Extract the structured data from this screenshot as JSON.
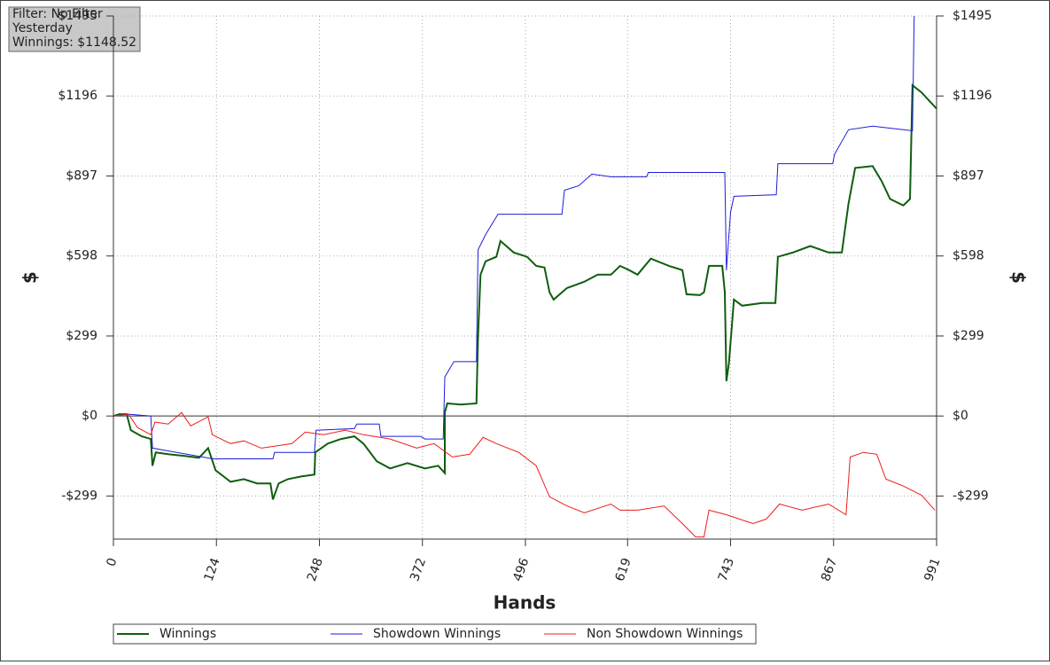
{
  "chart_data": {
    "type": "line",
    "info": [
      "Filter: No Filter",
      "Yesterday",
      "Winnings: $1148.52"
    ],
    "x_label": "Hands",
    "y_label": "$",
    "y2_label": "$",
    "xlim": [
      0,
      991
    ],
    "xticks": [
      0,
      124,
      248,
      372,
      496,
      619,
      743,
      867,
      991
    ],
    "ylim": [
      -460,
      1495
    ],
    "yticks": [
      {
        "value": -299,
        "label": "-$299"
      },
      {
        "value": 0,
        "label": "$0"
      },
      {
        "value": 299,
        "label": "$299"
      },
      {
        "value": 598,
        "label": "$598"
      },
      {
        "value": 897,
        "label": "$897"
      },
      {
        "value": 1196,
        "label": "$1196"
      },
      {
        "value": 1495,
        "label": "$1495"
      }
    ],
    "grid": true,
    "legend": "bottom",
    "series": [
      {
        "name": "Winnings",
        "color": "#0e5e0e",
        "x": [
          0,
          7,
          16,
          21,
          34,
          45,
          47,
          51,
          66,
          87,
          103,
          114,
          123,
          141,
          157,
          173,
          189,
          192,
          199,
          210,
          226,
          242,
          243,
          258,
          274,
          290,
          301,
          317,
          333,
          354,
          375,
          391,
          399,
          399,
          402,
          418,
          437,
          439,
          442,
          448,
          461,
          466,
          482,
          498,
          509,
          519,
          525,
          530,
          546,
          567,
          583,
          599,
          610,
          621,
          631,
          647,
          669,
          685,
          690,
          706,
          711,
          717,
          733,
          736,
          738,
          741,
          747,
          757,
          781,
          797,
          800,
          818,
          839,
          861,
          877,
          885,
          893,
          914,
          925,
          935,
          951,
          959,
          962,
          973,
          991
        ],
        "values": [
          0,
          7,
          7,
          -53,
          -76,
          -86,
          -186,
          -136,
          -143,
          -150,
          -156,
          -120,
          -203,
          -246,
          -236,
          -252,
          -252,
          -312,
          -252,
          -236,
          -226,
          -219,
          -136,
          -103,
          -86,
          -76,
          -103,
          -169,
          -196,
          -176,
          -196,
          -186,
          -213,
          13,
          47,
          43,
          47,
          296,
          528,
          578,
          595,
          654,
          611,
          595,
          561,
          555,
          462,
          435,
          478,
          502,
          528,
          528,
          561,
          545,
          528,
          588,
          561,
          545,
          455,
          452,
          462,
          561,
          561,
          462,
          130,
          196,
          435,
          412,
          422,
          422,
          595,
          611,
          635,
          611,
          611,
          794,
          927,
          934,
          877,
          811,
          787,
          811,
          1236,
          1209,
          1148.52
        ]
      },
      {
        "name": "Showdown Winnings",
        "color": "#1c1cdc",
        "x": [
          0,
          18,
          45,
          47,
          120,
          192,
          194,
          242,
          244,
          290,
          293,
          320,
          322,
          370,
          375,
          397,
          399,
          410,
          437,
          439,
          448,
          463,
          540,
          543,
          560,
          576,
          599,
          642,
          644,
          736,
          738,
          743,
          747,
          798,
          800,
          866,
          868,
          885,
          914,
          962,
          964
        ],
        "values": [
          0,
          7,
          0,
          -120,
          -160,
          -160,
          -136,
          -136,
          -53,
          -47,
          -30,
          -30,
          -76,
          -76,
          -86,
          -86,
          146,
          203,
          203,
          621,
          678,
          754,
          754,
          844,
          860,
          904,
          894,
          894,
          910,
          910,
          545,
          761,
          821,
          827,
          943,
          943,
          977,
          1070,
          1083,
          1066,
          1495
        ]
      },
      {
        "name": "Non Showdown Winnings",
        "color": "#ee1c1c",
        "x": [
          0,
          18,
          29,
          45,
          50,
          66,
          82,
          93,
          114,
          119,
          141,
          157,
          178,
          194,
          215,
          231,
          253,
          279,
          301,
          333,
          365,
          386,
          408,
          429,
          445,
          461,
          488,
          509,
          525,
          546,
          567,
          599,
          610,
          631,
          663,
          685,
          701,
          711,
          717,
          738,
          770,
          786,
          802,
          829,
          861,
          882,
          887,
          903,
          919,
          930,
          951,
          973,
          989
        ],
        "values": [
          0,
          7,
          -43,
          -70,
          -23,
          -30,
          13,
          -37,
          -3,
          -70,
          -103,
          -93,
          -120,
          -113,
          -103,
          -60,
          -70,
          -53,
          -70,
          -86,
          -120,
          -103,
          -153,
          -143,
          -80,
          -103,
          -136,
          -186,
          -302,
          -336,
          -362,
          -329,
          -352,
          -352,
          -336,
          -402,
          -452,
          -452,
          -352,
          -369,
          -402,
          -385,
          -329,
          -352,
          -329,
          -369,
          -153,
          -136,
          -143,
          -236,
          -262,
          -296,
          -352
        ]
      }
    ]
  }
}
